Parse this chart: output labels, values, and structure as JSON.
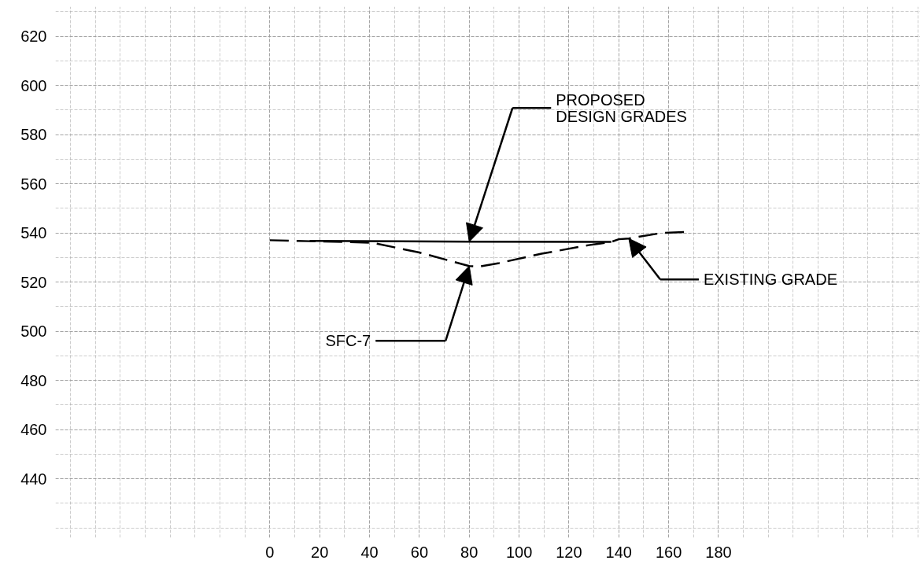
{
  "chart_data": {
    "type": "line",
    "series": [
      {
        "color": "#000000",
        "line_style": "dashed",
        "x": [
          0,
          16,
          41,
          60,
          80,
          84,
          92,
          109,
          128,
          137,
          140,
          144,
          157,
          167
        ],
        "values": [
          537,
          536.6,
          536,
          532,
          526.5,
          526.3,
          527.7,
          531.5,
          535,
          536.3,
          537.4,
          537.7,
          539.9,
          540.4
        ]
      },
      {
        "color": "#000000",
        "line_style": "solid",
        "x": [
          16,
          80,
          137
        ],
        "values": [
          536.7,
          536.4,
          536.3
        ]
      }
    ],
    "xlim": [
      -86,
      261
    ],
    "ylim": [
      416,
      632
    ],
    "xticks": [
      0,
      20,
      40,
      60,
      80,
      100,
      120,
      140,
      160,
      180
    ],
    "yticks": [
      440,
      460,
      480,
      500,
      520,
      540,
      560,
      580,
      600,
      620
    ],
    "grid": true,
    "annotations": [
      "PROPOSED\nDESIGN GRADES",
      "SFC-7",
      "EXISTING GRADE"
    ]
  }
}
